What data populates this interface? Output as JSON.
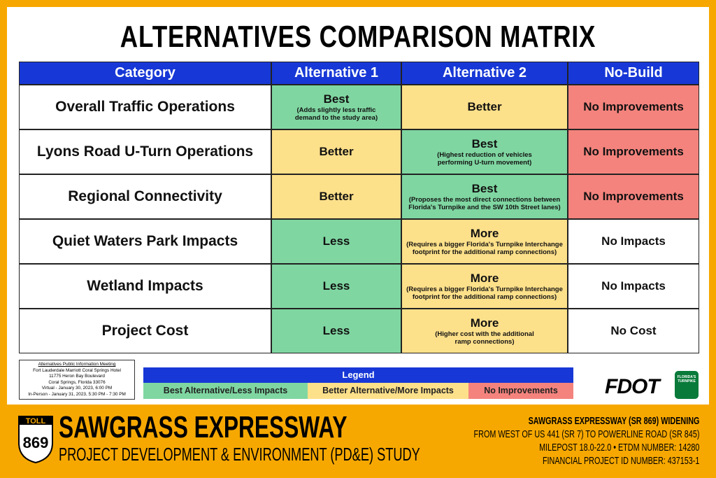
{
  "title": "ALTERNATIVES COMPARISON MATRIX",
  "table": {
    "header": [
      "Category",
      "Alternative 1",
      "Alternative 2",
      "No-Build"
    ],
    "rows": [
      {
        "category": "Overall Traffic Operations",
        "cells": [
          {
            "main": "Best",
            "note": [
              "(Adds slightly less traffic",
              "demand to the study area)"
            ],
            "color": "#7fd6a1"
          },
          {
            "main": "Better",
            "color": "#fde08a"
          },
          {
            "main": "No Improvements",
            "color": "#f4837d"
          }
        ]
      },
      {
        "category": "Lyons Road U-Turn Operations",
        "cells": [
          {
            "main": "Better",
            "color": "#fde08a"
          },
          {
            "main": "Best",
            "note": [
              "(Highest reduction of vehicles",
              "performing U-turn movement)"
            ],
            "color": "#7fd6a1"
          },
          {
            "main": "No Improvements",
            "color": "#f4837d"
          }
        ]
      },
      {
        "category": "Regional Connectivity",
        "cells": [
          {
            "main": "Better",
            "color": "#fde08a"
          },
          {
            "main": "Best",
            "note": [
              "(Proposes the most direct connections between",
              "Florida's Turnpike and the SW 10th Street lanes)"
            ],
            "color": "#7fd6a1"
          },
          {
            "main": "No Improvements",
            "color": "#f4837d"
          }
        ]
      },
      {
        "category": "Quiet Waters Park Impacts",
        "cells": [
          {
            "main": "Less",
            "color": "#7fd6a1"
          },
          {
            "main": "More",
            "note": [
              "(Requires a bigger Florida's Turnpike Interchange",
              "footprint for the additional ramp connections)"
            ],
            "color": "#fde08a"
          },
          {
            "main": "No Impacts",
            "color": "#ffffff"
          }
        ]
      },
      {
        "category": "Wetland Impacts",
        "cells": [
          {
            "main": "Less",
            "color": "#7fd6a1"
          },
          {
            "main": "More",
            "note": [
              "(Requires a bigger Florida's Turnpike Interchange",
              "footprint for the additional ramp connections)"
            ],
            "color": "#fde08a"
          },
          {
            "main": "No Impacts",
            "color": "#ffffff"
          }
        ]
      },
      {
        "category": "Project Cost",
        "cells": [
          {
            "main": "Less",
            "color": "#7fd6a1"
          },
          {
            "main": "More",
            "note": [
              "(Higher cost with the additional",
              "ramp connections)"
            ],
            "color": "#fde08a"
          },
          {
            "main": "No Cost",
            "color": "#ffffff"
          }
        ]
      }
    ]
  },
  "meeting": [
    "Alternatives Public Information Meeting",
    "Fort Lauderdale Marriott Coral Springs Hotel",
    "11775 Heron Bay Boulevard",
    "Coral Springs, Florida 33076",
    "Virtual - January 30, 2023, 6:00 PM",
    "In-Person - January 31, 2023, 5:30 PM - 7:30 PM"
  ],
  "legend": {
    "title": "Legend",
    "items": [
      {
        "label": "Best Alternative/Less Impacts",
        "color": "#7fd6a1"
      },
      {
        "label": "Better Alternative/More Impacts",
        "color": "#fde08a"
      },
      {
        "label": "No Improvements",
        "color": "#f4837d"
      }
    ]
  },
  "logo": {
    "fdot": "FDOT",
    "turnpike": [
      "FLORIDA'S",
      "TURNPIKE"
    ]
  },
  "shield": {
    "toll": "TOLL",
    "number": "869"
  },
  "footer": {
    "title": "SAWGRASS EXPRESSWAY",
    "subtitle": "PROJECT DEVELOPMENT & ENVIRONMENT (PD&E) STUDY",
    "right": [
      "SAWGRASS EXPRESSWAY (SR 869) WIDENING",
      "FROM WEST OF US 441 (SR 7) TO POWERLINE ROAD (SR 845)",
      "MILEPOST 18.0-22.0 • ETDM NUMBER: 14280",
      "FINANCIAL PROJECT ID NUMBER: 437153-1"
    ]
  }
}
